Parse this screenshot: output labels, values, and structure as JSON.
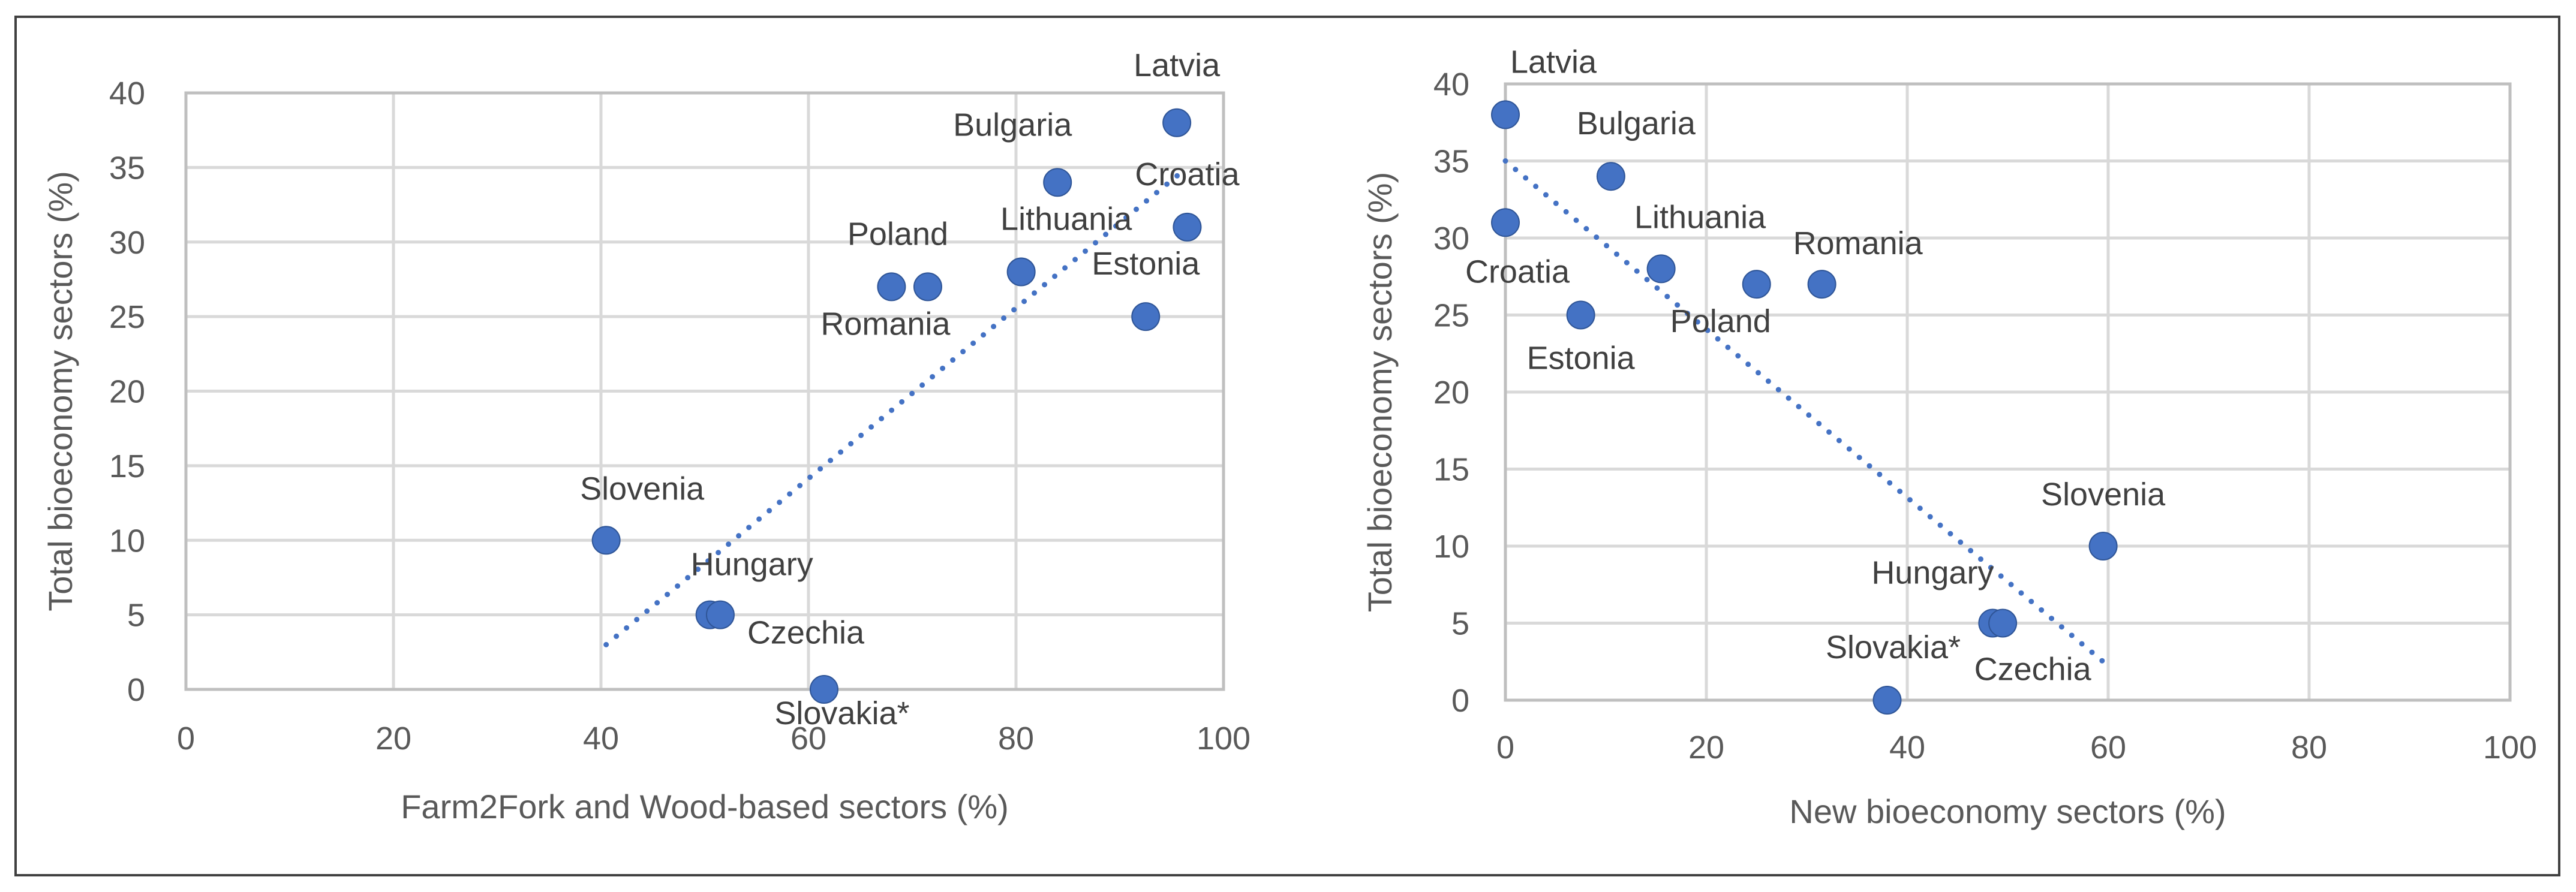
{
  "chart_data": [
    {
      "type": "scatter",
      "title": "",
      "xlabel": "Farm2Fork and Wood-based sectors (%)",
      "ylabel": "Total bioeconomy sectors (%)",
      "xlim": [
        0,
        100
      ],
      "ylim": [
        0,
        40
      ],
      "xticks": [
        "0",
        "20",
        "40",
        "60",
        "80",
        "100"
      ],
      "yticks": [
        "0",
        "5",
        "10",
        "15",
        "20",
        "25",
        "30",
        "35",
        "40"
      ],
      "grid": true,
      "points": [
        {
          "label": "Latvia",
          "x": 95.5,
          "y": 38
        },
        {
          "label": "Bulgaria",
          "x": 84,
          "y": 34
        },
        {
          "label": "Croatia",
          "x": 96.5,
          "y": 31
        },
        {
          "label": "Lithuania",
          "x": 80.5,
          "y": 28
        },
        {
          "label": "Poland",
          "x": 71.5,
          "y": 27
        },
        {
          "label": "Romania",
          "x": 68,
          "y": 27
        },
        {
          "label": "Estonia",
          "x": 92.5,
          "y": 25
        },
        {
          "label": "Slovenia",
          "x": 40.5,
          "y": 10
        },
        {
          "label": "Hungary",
          "x": 50.5,
          "y": 5
        },
        {
          "label": "Czechia",
          "x": 51.5,
          "y": 5
        },
        {
          "label": "Slovakia*",
          "x": 61.5,
          "y": 0
        }
      ],
      "trendline": {
        "type": "linear",
        "x": [
          40.5,
          96.5
        ],
        "y": [
          3,
          35
        ]
      }
    },
    {
      "type": "scatter",
      "title": "",
      "xlabel": "New bioeconomy sectors (%)",
      "ylabel": "Total bioeconomy sectors (%)",
      "xlim": [
        0,
        100
      ],
      "ylim": [
        0,
        40
      ],
      "xticks": [
        "0",
        "20",
        "40",
        "60",
        "80",
        "100"
      ],
      "yticks": [
        "0",
        "5",
        "10",
        "15",
        "20",
        "25",
        "30",
        "35",
        "40"
      ],
      "grid": true,
      "points": [
        {
          "label": "Latvia",
          "x": 0,
          "y": 38
        },
        {
          "label": "Bulgaria",
          "x": 10.5,
          "y": 34
        },
        {
          "label": "Croatia",
          "x": 0,
          "y": 31
        },
        {
          "label": "Lithuania",
          "x": 15.5,
          "y": 28
        },
        {
          "label": "Poland",
          "x": 25,
          "y": 27
        },
        {
          "label": "Romania",
          "x": 31.5,
          "y": 27
        },
        {
          "label": "Estonia",
          "x": 7.5,
          "y": 25
        },
        {
          "label": "Slovenia",
          "x": 59.5,
          "y": 10
        },
        {
          "label": "Hungary",
          "x": 48.5,
          "y": 5
        },
        {
          "label": "Czechia",
          "x": 49.5,
          "y": 5
        },
        {
          "label": "Slovakia*",
          "x": 38,
          "y": 0
        }
      ],
      "trendline": {
        "type": "linear",
        "x": [
          0,
          59.5
        ],
        "y": [
          35,
          2.5
        ]
      }
    }
  ]
}
